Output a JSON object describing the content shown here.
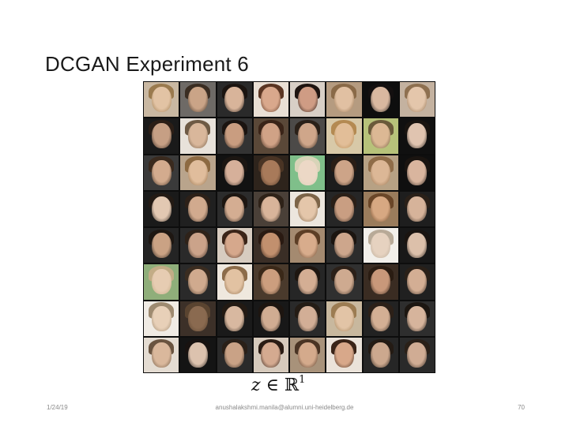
{
  "slide": {
    "title": "DCGAN Experiment 6",
    "formula": {
      "variable": "z",
      "relation": " ∈ ",
      "set": "ℝ",
      "exponent": "1"
    }
  },
  "footer": {
    "date": "1/24/19",
    "email": "anushalakshmi.manila@alumni.uni-heidelberg.de",
    "page_number": "70"
  },
  "image_grid": {
    "rows": 8,
    "columns": 8,
    "tiles": [
      {
        "bg": "#c9b8a2",
        "hair": "#9a7a4e",
        "skin": "#e2c3a4"
      },
      {
        "bg": "#6e6a66",
        "hair": "#3a2d22",
        "skin": "#caa487"
      },
      {
        "bg": "#2a2a2a",
        "hair": "#1b1410",
        "skin": "#d8b49a"
      },
      {
        "bg": "#e9dfd4",
        "hair": "#5a3522",
        "skin": "#d9a88c"
      },
      {
        "bg": "#d8cfc6",
        "hair": "#1e1410",
        "skin": "#cf9c84"
      },
      {
        "bg": "#b59b80",
        "hair": "#8a6a48",
        "skin": "#e1c0a2"
      },
      {
        "bg": "#0e0e0e",
        "hair": "#141010",
        "skin": "#d9b8a0"
      },
      {
        "bg": "#c4b2a0",
        "hair": "#8e7050",
        "skin": "#e4c6ab"
      },
      {
        "bg": "#1a1a1a",
        "hair": "#2b1e16",
        "skin": "#c69f84"
      },
      {
        "bg": "#e8e2da",
        "hair": "#6e5a44",
        "skin": "#d9b79b"
      },
      {
        "bg": "#333333",
        "hair": "#1b1410",
        "skin": "#c99d80"
      },
      {
        "bg": "#5a4838",
        "hair": "#3a2418",
        "skin": "#d0a286"
      },
      {
        "bg": "#4c4a48",
        "hair": "#2a2018",
        "skin": "#cfa68a"
      },
      {
        "bg": "#d8c9a8",
        "hair": "#b48a52",
        "skin": "#e2be98"
      },
      {
        "bg": "#b7c27a",
        "hair": "#6a5a3a",
        "skin": "#dcb894"
      },
      {
        "bg": "#101010",
        "hair": "#191410",
        "skin": "#e0c4b0"
      },
      {
        "bg": "#3a3a3a",
        "hair": "#3a2a1e",
        "skin": "#d3ab8e"
      },
      {
        "bg": "#b9a48c",
        "hair": "#8d6a42",
        "skin": "#e0bd9c"
      },
      {
        "bg": "#121212",
        "hair": "#1c1612",
        "skin": "#d6b09a"
      },
      {
        "bg": "#2e241c",
        "hair": "#4a3424",
        "skin": "#a87a5a"
      },
      {
        "bg": "#7fbf8a",
        "hair": "#d8d4b8",
        "skin": "#ecd8c6"
      },
      {
        "bg": "#1c1c1c",
        "hair": "#2a1e16",
        "skin": "#cda488"
      },
      {
        "bg": "#b7a184",
        "hair": "#8f6c48",
        "skin": "#dcb796"
      },
      {
        "bg": "#0f0f0f",
        "hair": "#1a1410",
        "skin": "#d9b59e"
      },
      {
        "bg": "#1a1a1a",
        "hair": "#231a14",
        "skin": "#e2c8b2"
      },
      {
        "bg": "#202020",
        "hair": "#2c2018",
        "skin": "#d1aa8e"
      },
      {
        "bg": "#2c2c2c",
        "hair": "#1d1611",
        "skin": "#d4ad92"
      },
      {
        "bg": "#4a4038",
        "hair": "#2e2218",
        "skin": "#d8b49a"
      },
      {
        "bg": "#ece6de",
        "hair": "#7c6448",
        "skin": "#e4c6aa"
      },
      {
        "bg": "#262626",
        "hair": "#2a1f17",
        "skin": "#c99e82"
      },
      {
        "bg": "#9a7c5c",
        "hair": "#6a4628",
        "skin": "#d7a882"
      },
      {
        "bg": "#1e1e1e",
        "hair": "#2a2018",
        "skin": "#d6b39a"
      },
      {
        "bg": "#242424",
        "hair": "#1e1712",
        "skin": "#caa284"
      },
      {
        "bg": "#2a2a2a",
        "hair": "#2e2219",
        "skin": "#cba38a"
      },
      {
        "bg": "#d7ccc0",
        "hair": "#3a2418",
        "skin": "#d6a88c"
      },
      {
        "bg": "#3a2e26",
        "hair": "#2a1a12",
        "skin": "#c2906e"
      },
      {
        "bg": "#a48a70",
        "hair": "#5c3e26",
        "skin": "#d8ac8c"
      },
      {
        "bg": "#2c2c2c",
        "hair": "#1c1510",
        "skin": "#cda68c"
      },
      {
        "bg": "#f2efea",
        "hair": "#b8aa98",
        "skin": "#e6d2c0"
      },
      {
        "bg": "#181818",
        "hair": "#1a1410",
        "skin": "#dcc0aa"
      },
      {
        "bg": "#8fae7a",
        "hair": "#c2ac86",
        "skin": "#e6ccb2"
      },
      {
        "bg": "#2a2a2a",
        "hair": "#3a2c20",
        "skin": "#d0aa8e"
      },
      {
        "bg": "#efe8de",
        "hair": "#8c6c4a",
        "skin": "#e2c2a2"
      },
      {
        "bg": "#4a3a2c",
        "hair": "#3a2818",
        "skin": "#cc9e7e"
      },
      {
        "bg": "#262626",
        "hair": "#1e1610",
        "skin": "#d4ae94"
      },
      {
        "bg": "#303030",
        "hair": "#2c2018",
        "skin": "#ceaa90"
      },
      {
        "bg": "#3a2c22",
        "hair": "#2a1c12",
        "skin": "#c8987a"
      },
      {
        "bg": "#202020",
        "hair": "#2a2018",
        "skin": "#d3ae94"
      },
      {
        "bg": "#f0ebe4",
        "hair": "#9e8a70",
        "skin": "#e8d0b8"
      },
      {
        "bg": "#3c3028",
        "hair": "#5a4430",
        "skin": "#8a6a50"
      },
      {
        "bg": "#1a1a1a",
        "hair": "#231a13",
        "skin": "#d8b8a0"
      },
      {
        "bg": "#181818",
        "hair": "#1d1510",
        "skin": "#d0ac92"
      },
      {
        "bg": "#2a2a2a",
        "hair": "#241c15",
        "skin": "#d2ae96"
      },
      {
        "bg": "#c8b89e",
        "hair": "#9c7c52",
        "skin": "#e2c4a6"
      },
      {
        "bg": "#222222",
        "hair": "#2c2018",
        "skin": "#d3af94"
      },
      {
        "bg": "#2e2e2e",
        "hair": "#1c1611",
        "skin": "#d6b49c"
      },
      {
        "bg": "#e4dcd2",
        "hair": "#6a5440",
        "skin": "#dab89c"
      },
      {
        "bg": "#141414",
        "hair": "#181210",
        "skin": "#dcc2ae"
      },
      {
        "bg": "#2a2a2a",
        "hair": "#2a2018",
        "skin": "#c9a286"
      },
      {
        "bg": "#d6cabc",
        "hair": "#2a1c14",
        "skin": "#d4aa90"
      },
      {
        "bg": "#a8927a",
        "hair": "#4a3424",
        "skin": "#d4aa8c"
      },
      {
        "bg": "#ebe3da",
        "hair": "#3a2418",
        "skin": "#d8a88a"
      },
      {
        "bg": "#262626",
        "hair": "#241b14",
        "skin": "#cca88e"
      },
      {
        "bg": "#2a2a2a",
        "hair": "#2a2018",
        "skin": "#d0ac94"
      }
    ]
  }
}
